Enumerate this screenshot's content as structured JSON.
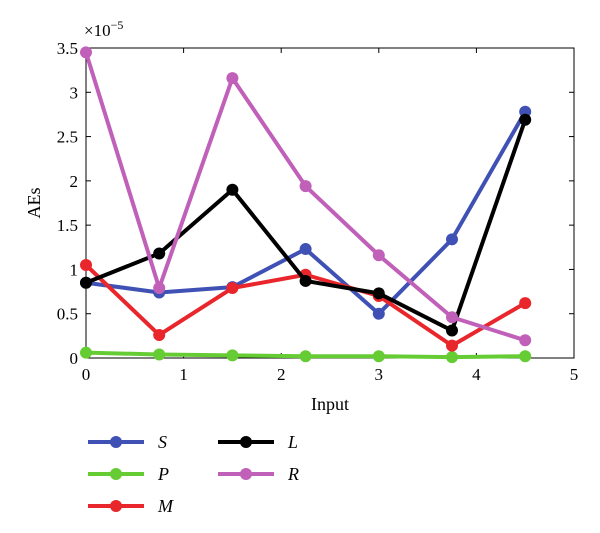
{
  "chart_data": {
    "type": "line",
    "xlabel": "Input",
    "ylabel": "AEs",
    "y_multiplier": "×10",
    "y_multiplier_exp": "−5",
    "xlim": [
      0,
      5
    ],
    "ylim": [
      0,
      3.5
    ],
    "x_ticks": [
      "0",
      "1",
      "2",
      "3",
      "4",
      "5"
    ],
    "y_ticks": [
      "0",
      "0.5",
      "1",
      "1.5",
      "2",
      "2.5",
      "3",
      "3.5"
    ],
    "x": [
      0,
      0.75,
      1.5,
      2.25,
      3,
      3.75,
      4.5
    ],
    "series": [
      {
        "name": "S",
        "color": "#3f51b5",
        "values": [
          0.85,
          0.74,
          0.8,
          1.23,
          0.5,
          1.34,
          2.78
        ]
      },
      {
        "name": "P",
        "color": "#66cc33",
        "values": [
          0.06,
          0.04,
          0.03,
          0.02,
          0.02,
          0.01,
          0.02
        ]
      },
      {
        "name": "M",
        "color": "#e8262b",
        "values": [
          1.05,
          0.26,
          0.79,
          0.94,
          0.7,
          0.14,
          0.62
        ]
      },
      {
        "name": "L",
        "color": "#000000",
        "values": [
          0.85,
          1.18,
          1.9,
          0.87,
          0.73,
          0.31,
          2.69
        ]
      },
      {
        "name": "R",
        "color": "#c060b8",
        "values": [
          3.45,
          0.79,
          3.16,
          1.94,
          1.16,
          0.46,
          0.2
        ]
      }
    ],
    "legend": {
      "placement": "bottom-left",
      "columns": [
        [
          "S",
          "P",
          "M"
        ],
        [
          "L",
          "R"
        ]
      ]
    },
    "grid": false
  }
}
